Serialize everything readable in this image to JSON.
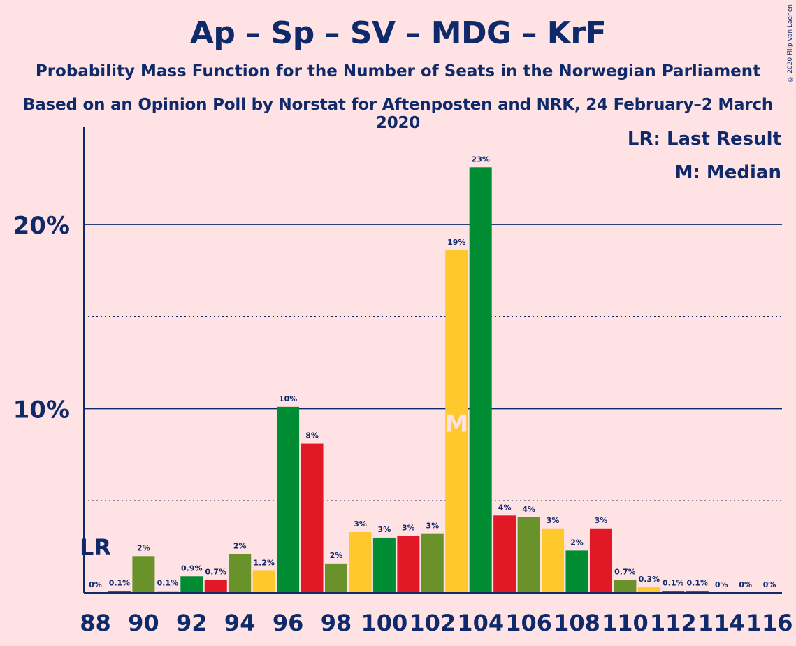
{
  "header": {
    "title": "Ap – Sp – SV – MDG – KrF",
    "subtitle": "Probability Mass Function for the Number of Seats in the Norwegian Parliament",
    "subtitle2": "Based on an Opinion Poll by Norstat for Aftenposten and NRK, 24 February–2 March 2020",
    "copyright": "© 2020 Filip van Laenen"
  },
  "legend": {
    "last_result": "LR: Last Result",
    "median": "M: Median"
  },
  "chart_data": {
    "type": "bar",
    "x": [
      88,
      89,
      90,
      91,
      92,
      93,
      94,
      95,
      96,
      97,
      98,
      99,
      100,
      101,
      102,
      103,
      104,
      105,
      106,
      107,
      108,
      109,
      110,
      111,
      112,
      113,
      114,
      115,
      116
    ],
    "values": [
      0,
      0.1,
      2.0,
      0.1,
      0.9,
      0.7,
      2.1,
      1.2,
      10.1,
      8.1,
      1.6,
      3.3,
      3.0,
      3.1,
      3.2,
      18.6,
      23.1,
      4.2,
      4.1,
      3.5,
      2.3,
      3.5,
      0.7,
      0.3,
      0.1,
      0.1,
      0,
      0,
      0
    ],
    "value_labels": [
      "0%",
      "0.1%",
      "2%",
      "0.1%",
      "0.9%",
      "0.7%",
      "2%",
      "1.2%",
      "10%",
      "8%",
      "2%",
      "3%",
      "3%",
      "3%",
      "3%",
      "19%",
      "23%",
      "4%",
      "4%",
      "3%",
      "2%",
      "3%",
      "0.7%",
      "0.3%",
      "0.1%",
      "0.1%",
      "0%",
      "0%",
      "0%"
    ],
    "x_tick_labels": [
      "88",
      "90",
      "92",
      "94",
      "96",
      "98",
      "100",
      "102",
      "104",
      "106",
      "108",
      "110",
      "112",
      "114",
      "116"
    ],
    "y_tick_labels": [
      {
        "value": 10,
        "label": "10%"
      },
      {
        "value": 20,
        "label": "20%"
      }
    ],
    "y_minor_gridlines": [
      5,
      15
    ],
    "ylim": [
      0,
      25
    ],
    "xlim": [
      88,
      116
    ],
    "last_result_seat": 88,
    "last_result_label": "LR",
    "median_seat": 103,
    "median_label": "M",
    "colors": {
      "Ap": "#E11926",
      "Sp": "#6A922A",
      "SV": "#008C32",
      "MDG": "#FFC82D",
      "axis": "#0F2A6B",
      "background": "#FFE2E3"
    },
    "bar_party_cycle": [
      "SV",
      "Ap",
      "Sp",
      "MDG"
    ]
  }
}
